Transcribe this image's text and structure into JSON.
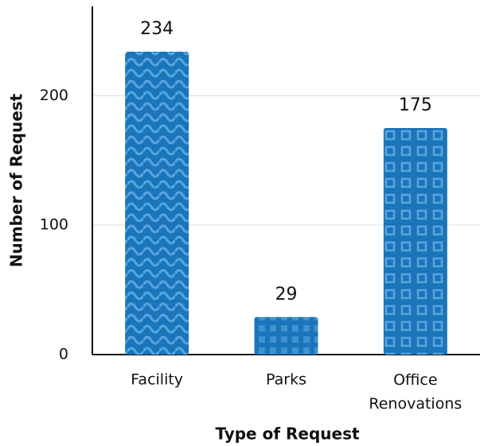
{
  "chart_data": {
    "type": "bar",
    "x_label": "Type of Request",
    "y_label": "Number of Request",
    "categories": [
      "Facility",
      "Parks",
      "Office Renovations"
    ],
    "values": [
      234,
      29,
      175
    ],
    "color": "#1a75bb",
    "ylim": [
      0,
      269
    ],
    "yticks": [
      0,
      100,
      200
    ],
    "grid": true
  }
}
